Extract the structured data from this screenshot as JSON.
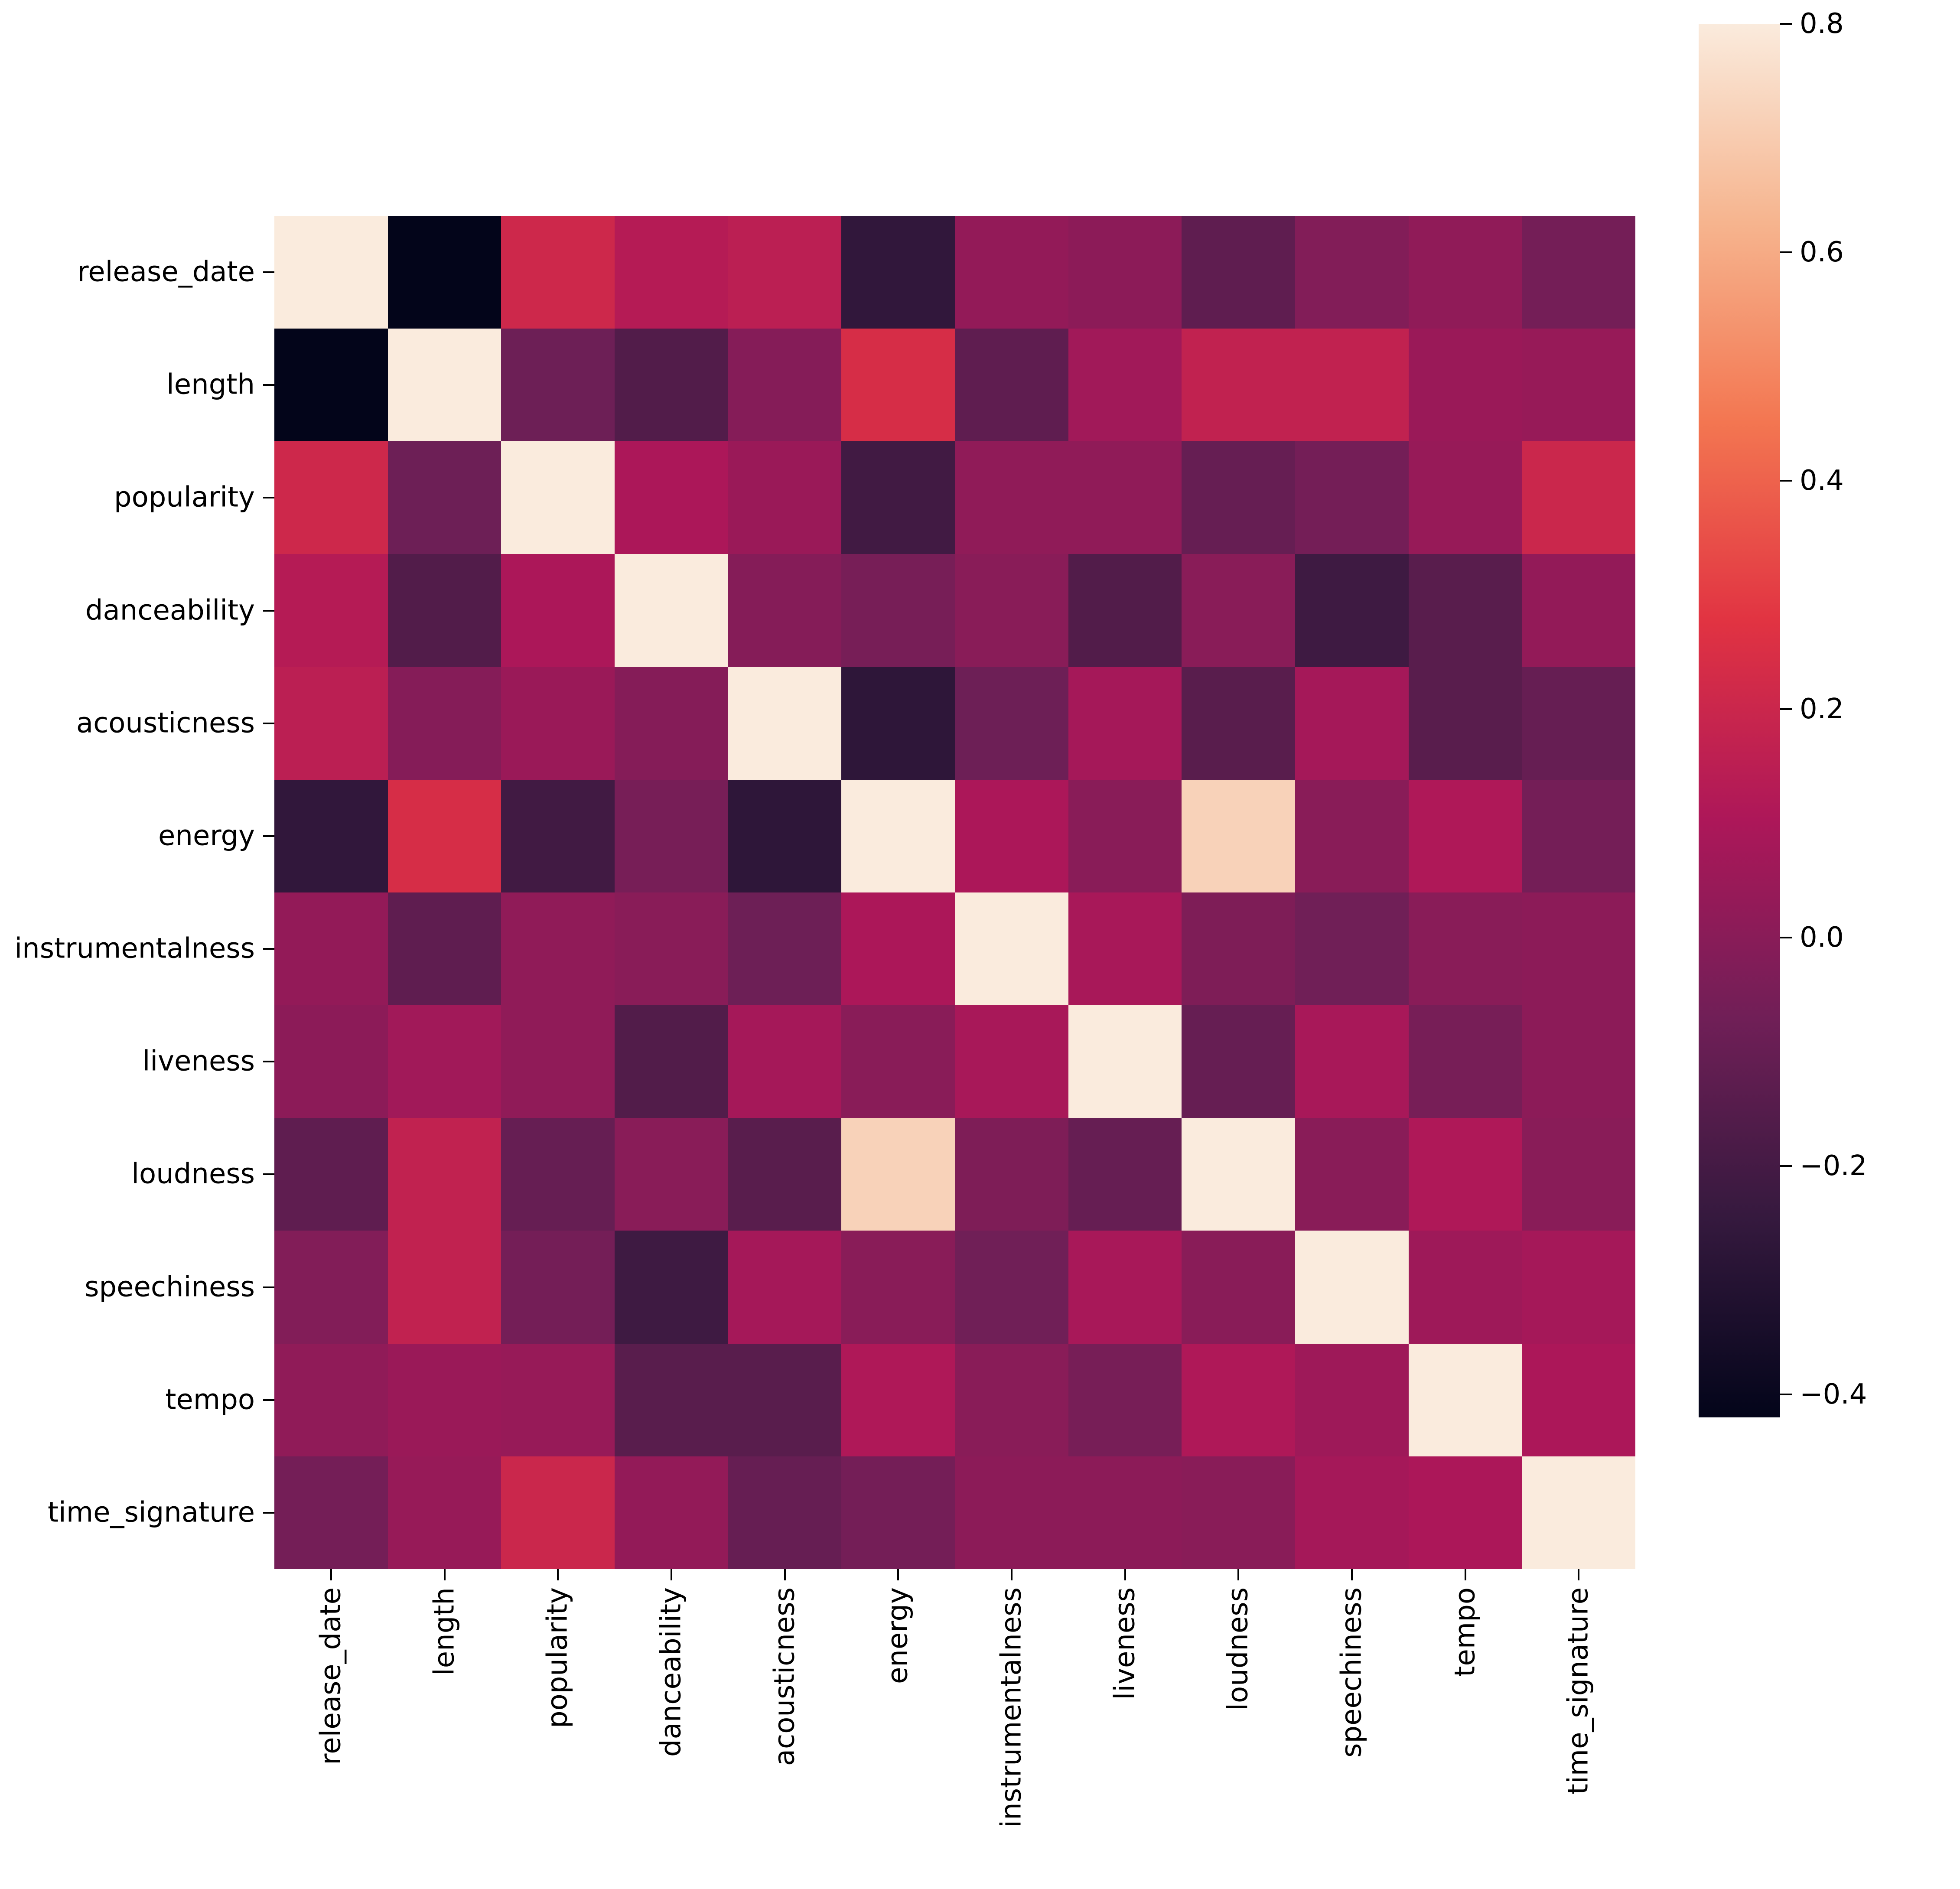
{
  "figure": {
    "background_color": "#ffffff",
    "text_color": "#000000",
    "tick_color": "#000000"
  },
  "chart_data": {
    "type": "heatmap",
    "title": "",
    "xlabel": "",
    "ylabel": "",
    "grid": false,
    "legend_position": "colorbar-right",
    "variables": [
      "release_date",
      "length",
      "popularity",
      "danceability",
      "acousticness",
      "energy",
      "instrumentalness",
      "liveness",
      "loudness",
      "speechiness",
      "tempo",
      "time_signature"
    ],
    "matrix": [
      [
        1.0,
        -0.42,
        0.21,
        0.13,
        0.15,
        -0.26,
        0.03,
        0.01,
        -0.12,
        -0.02,
        0.02,
        -0.06
      ],
      [
        -0.42,
        1.0,
        -0.08,
        -0.16,
        -0.01,
        0.24,
        -0.12,
        0.07,
        0.17,
        0.17,
        0.05,
        0.04
      ],
      [
        0.21,
        -0.08,
        1.0,
        0.1,
        0.05,
        -0.21,
        0.02,
        0.02,
        -0.1,
        -0.06,
        0.04,
        0.2
      ],
      [
        0.13,
        -0.16,
        0.1,
        1.0,
        -0.01,
        -0.05,
        0.0,
        -0.16,
        0.0,
        -0.22,
        -0.14,
        0.03
      ],
      [
        0.15,
        -0.01,
        0.05,
        -0.01,
        1.0,
        -0.27,
        -0.08,
        0.08,
        -0.14,
        0.08,
        -0.14,
        -0.1
      ],
      [
        -0.26,
        0.24,
        -0.21,
        -0.05,
        -0.27,
        1.0,
        0.1,
        0.0,
        0.72,
        0.0,
        0.11,
        -0.06
      ],
      [
        0.03,
        -0.12,
        0.02,
        0.0,
        -0.08,
        0.1,
        1.0,
        0.09,
        -0.03,
        -0.07,
        0.0,
        0.01
      ],
      [
        0.01,
        0.07,
        0.02,
        -0.16,
        0.08,
        0.0,
        0.09,
        1.0,
        -0.1,
        0.09,
        -0.05,
        0.01
      ],
      [
        -0.12,
        0.17,
        -0.1,
        0.0,
        -0.14,
        0.72,
        -0.03,
        -0.1,
        1.0,
        0.0,
        0.11,
        0.0
      ],
      [
        -0.02,
        0.17,
        -0.06,
        -0.22,
        0.08,
        0.0,
        -0.07,
        0.09,
        0.0,
        1.0,
        0.06,
        0.08
      ],
      [
        0.02,
        0.05,
        0.04,
        -0.14,
        -0.14,
        0.11,
        0.0,
        -0.05,
        0.11,
        0.06,
        1.0,
        0.1
      ],
      [
        -0.06,
        0.04,
        0.2,
        0.03,
        -0.1,
        -0.06,
        0.01,
        0.01,
        0.0,
        0.08,
        0.1,
        1.0
      ]
    ],
    "vmin": -0.42,
    "vmax": 0.8,
    "colormap": {
      "name": "rocket",
      "anchors": [
        [
          0.0,
          "#03051A"
        ],
        [
          0.143,
          "#35193E"
        ],
        [
          0.286,
          "#701F57"
        ],
        [
          0.429,
          "#AD1759"
        ],
        [
          0.571,
          "#E13342"
        ],
        [
          0.714,
          "#F37651"
        ],
        [
          0.857,
          "#F6B48E"
        ],
        [
          1.0,
          "#FAEBDD"
        ]
      ]
    },
    "colorbar": {
      "tick_values": [
        0.8,
        0.6,
        0.4,
        0.2,
        0.0,
        -0.2,
        -0.4
      ],
      "tick_labels": [
        "0.8",
        "0.6",
        "0.4",
        "0.2",
        "0.0",
        "−0.2",
        "−0.4"
      ]
    }
  }
}
